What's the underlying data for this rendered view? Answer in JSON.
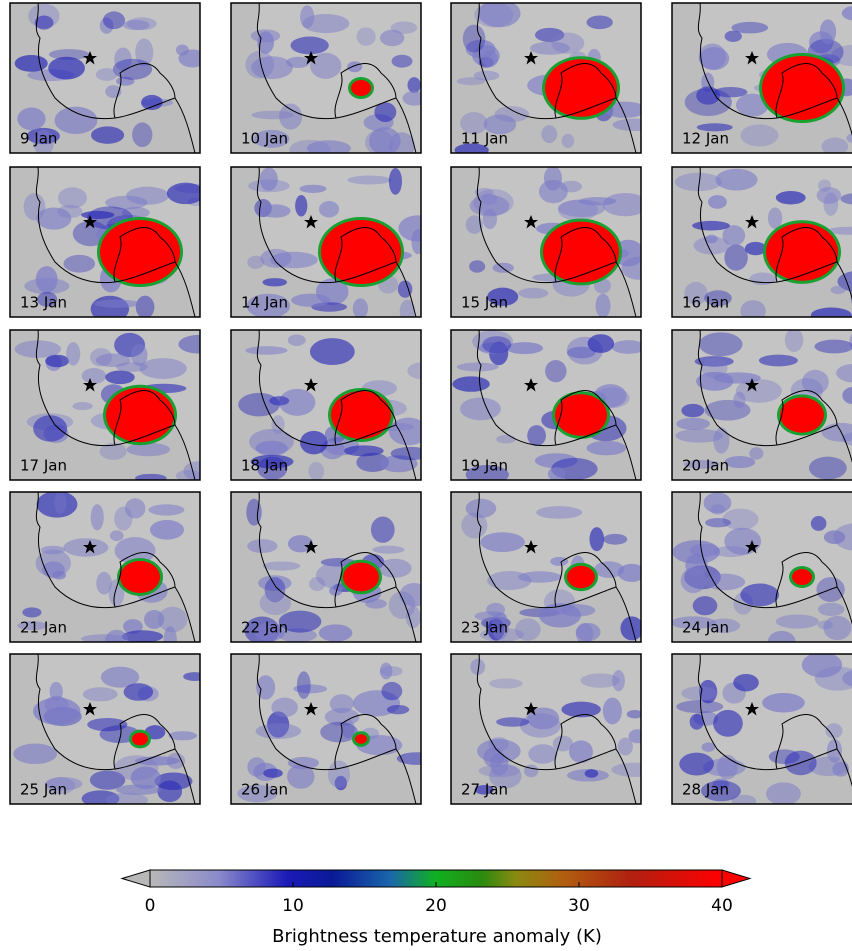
{
  "panels": [
    {
      "label": "9 Jan"
    },
    {
      "label": "10 Jan"
    },
    {
      "label": "11 Jan"
    },
    {
      "label": "12 Jan"
    },
    {
      "label": "13 Jan"
    },
    {
      "label": "14 Jan"
    },
    {
      "label": "15 Jan"
    },
    {
      "label": "16 Jan"
    },
    {
      "label": "17 Jan"
    },
    {
      "label": "18 Jan"
    },
    {
      "label": "19 Jan"
    },
    {
      "label": "20 Jan"
    },
    {
      "label": "21 Jan"
    },
    {
      "label": "22 Jan"
    },
    {
      "label": "23 Jan"
    },
    {
      "label": "24 Jan"
    },
    {
      "label": "25 Jan"
    },
    {
      "label": "26 Jan"
    },
    {
      "label": "27 Jan"
    },
    {
      "label": "28 Jan"
    }
  ],
  "colorbar": {
    "label": "Brightness temperature anomaly (K)",
    "lim": [
      0,
      40
    ],
    "ticks": [
      0,
      10,
      20,
      30,
      40
    ]
  }
}
